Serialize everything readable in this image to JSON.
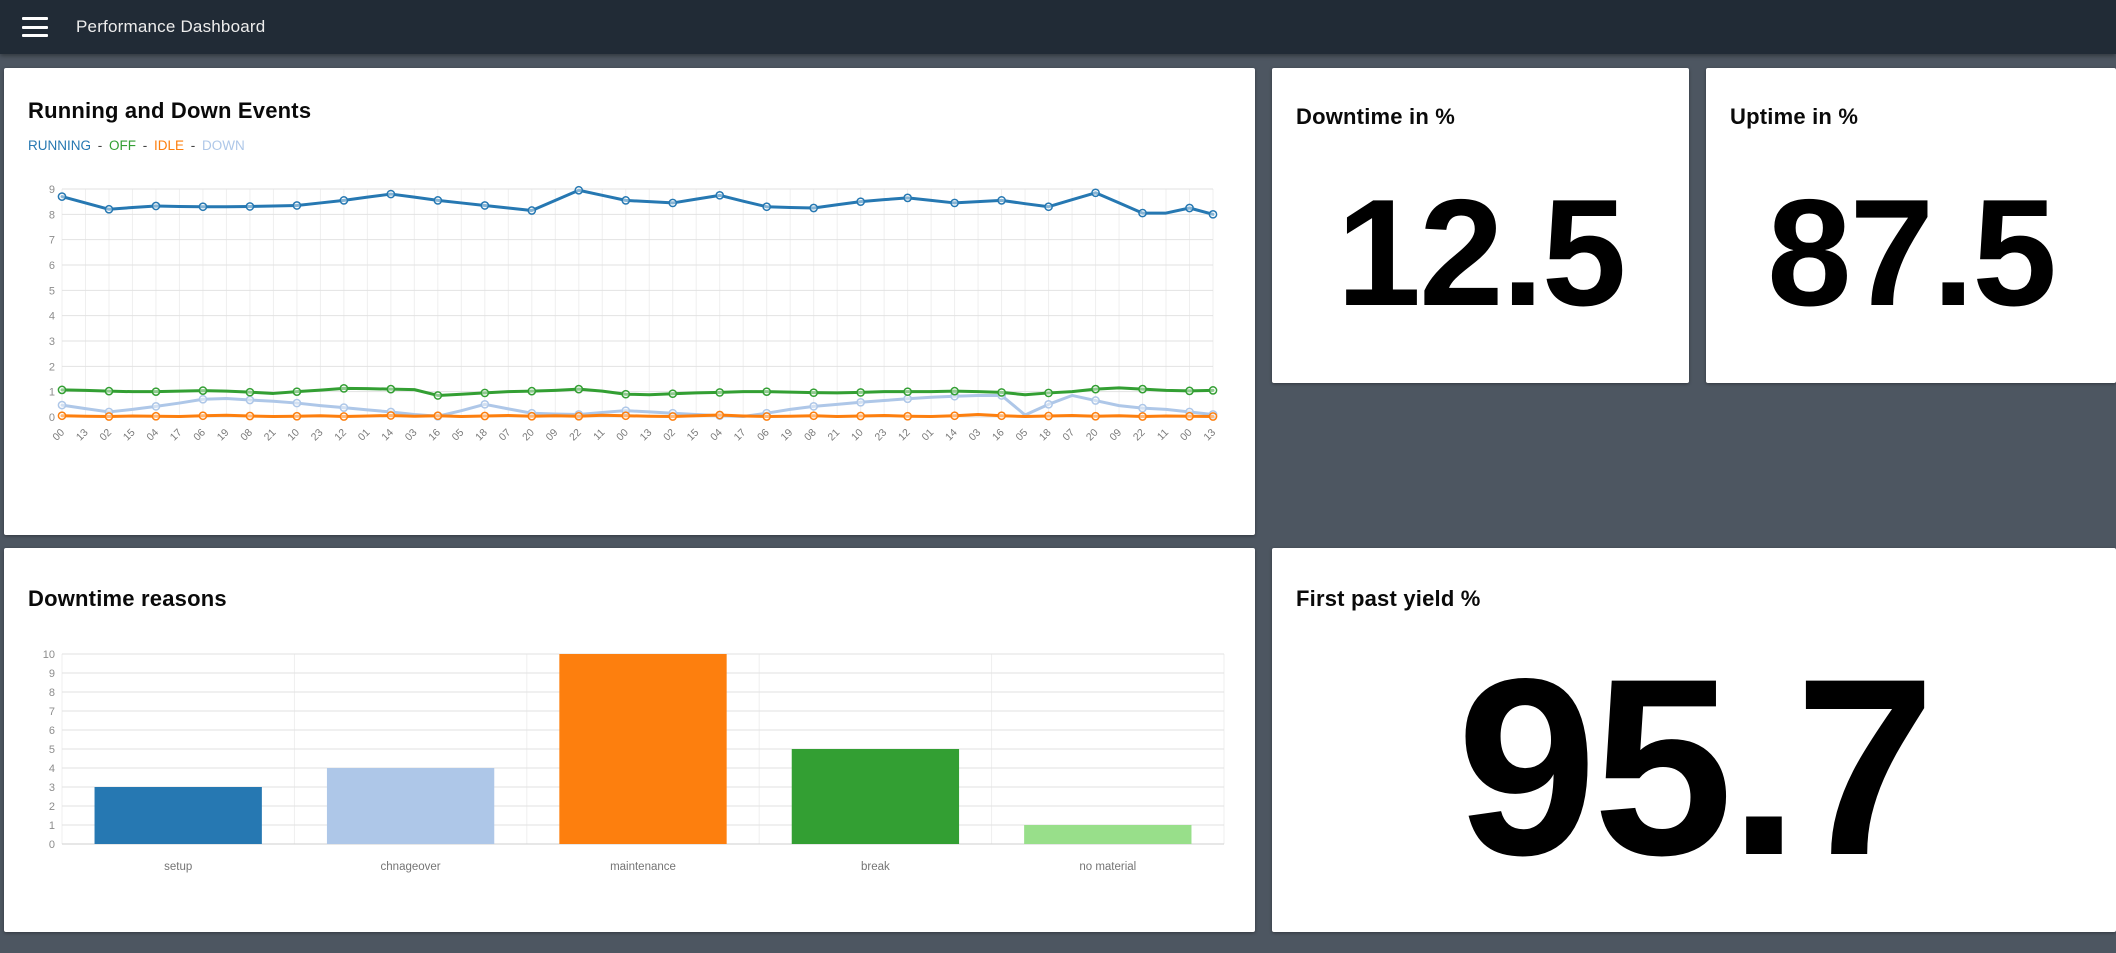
{
  "navbar": {
    "title": "Performance Dashboard"
  },
  "cards": {
    "events": {
      "title": "Running and Down Events"
    },
    "downtime": {
      "title": "Downtime in %",
      "value": "12.5"
    },
    "uptime": {
      "title": "Uptime in %",
      "value": "87.5"
    },
    "reasons": {
      "title": "Downtime reasons"
    },
    "fpy": {
      "title": "First past yield %",
      "value": "95.7"
    }
  },
  "colors": {
    "navbar_bg": "#212b36",
    "page_bg": "#4d5661",
    "card_bg": "#ffffff",
    "grid_line": "#e2e2e2",
    "axis_text": "#8c8c8c",
    "running_blue": "#2678b2",
    "off_green": "#339f33",
    "idle_orange": "#fd7f0e",
    "down_lightblue": "#aec7e8"
  },
  "chart_data": [
    {
      "type": "line",
      "title": "Running and Down Events",
      "categories": [
        "00",
        "13",
        "02",
        "15",
        "04",
        "17",
        "06",
        "19",
        "08",
        "21",
        "10",
        "23",
        "12",
        "01",
        "14",
        "03",
        "16",
        "05",
        "18",
        "07",
        "20",
        "09",
        "22",
        "11",
        "00",
        "13",
        "02",
        "15",
        "04",
        "17",
        "06",
        "19",
        "08",
        "21",
        "10",
        "23",
        "12",
        "01",
        "14",
        "03",
        "16",
        "05",
        "18",
        "07",
        "20",
        "09",
        "22",
        "11",
        "00",
        "13"
      ],
      "series": [
        {
          "name": "RUNNING",
          "color": "#2678b2",
          "values": [
            8.7,
            8.45,
            8.2,
            8.27,
            8.33,
            8.31,
            8.3,
            8.3,
            8.31,
            8.33,
            8.35,
            8.45,
            8.55,
            8.68,
            8.8,
            8.68,
            8.55,
            8.45,
            8.35,
            8.25,
            8.15,
            8.55,
            8.95,
            8.75,
            8.55,
            8.5,
            8.45,
            8.6,
            8.75,
            8.52,
            8.3,
            8.27,
            8.25,
            8.38,
            8.5,
            8.58,
            8.65,
            8.55,
            8.45,
            8.5,
            8.55,
            8.42,
            8.3,
            8.58,
            8.85,
            8.45,
            8.05,
            8.05,
            8.25,
            8.0
          ]
        },
        {
          "name": "OFF",
          "color": "#339f33",
          "values": [
            1.07,
            1.05,
            1.02,
            1.0,
            1.0,
            1.02,
            1.04,
            1.02,
            0.98,
            0.93,
            1.0,
            1.06,
            1.13,
            1.12,
            1.1,
            1.08,
            0.85,
            0.9,
            0.95,
            1.0,
            1.02,
            1.05,
            1.1,
            1.02,
            0.9,
            0.88,
            0.92,
            0.95,
            0.97,
            1.0,
            1.0,
            0.98,
            0.96,
            0.95,
            0.97,
            1.0,
            1.0,
            1.0,
            1.02,
            1.0,
            0.97,
            0.88,
            0.95,
            1.0,
            1.1,
            1.15,
            1.1,
            1.05,
            1.03,
            1.05
          ]
        },
        {
          "name": "IDLE",
          "color": "#fd7f0e",
          "values": [
            0.05,
            0.03,
            0.02,
            0.04,
            0.03,
            0.02,
            0.05,
            0.07,
            0.04,
            0.02,
            0.03,
            0.05,
            0.02,
            0.04,
            0.06,
            0.03,
            0.05,
            0.02,
            0.04,
            0.06,
            0.03,
            0.05,
            0.03,
            0.07,
            0.05,
            0.03,
            0.02,
            0.05,
            0.08,
            0.04,
            0.02,
            0.03,
            0.05,
            0.02,
            0.04,
            0.06,
            0.03,
            0.02,
            0.05,
            0.1,
            0.05,
            0.02,
            0.04,
            0.06,
            0.03,
            0.05,
            0.02,
            0.04,
            0.03,
            0.02
          ]
        },
        {
          "name": "DOWN",
          "color": "#aec7e8",
          "values": [
            0.47,
            0.33,
            0.2,
            0.3,
            0.42,
            0.55,
            0.7,
            0.73,
            0.67,
            0.62,
            0.55,
            0.45,
            0.37,
            0.28,
            0.2,
            0.1,
            0.03,
            0.25,
            0.5,
            0.32,
            0.15,
            0.12,
            0.1,
            0.18,
            0.25,
            0.2,
            0.15,
            0.1,
            0.05,
            0.02,
            0.15,
            0.3,
            0.42,
            0.5,
            0.58,
            0.65,
            0.72,
            0.78,
            0.82,
            0.85,
            0.85,
            0.08,
            0.5,
            0.85,
            0.65,
            0.45,
            0.35,
            0.3,
            0.2,
            0.1
          ]
        }
      ],
      "ylim": [
        0,
        9
      ],
      "yticks": [
        0,
        1,
        2,
        3,
        4,
        5,
        6,
        7,
        8,
        9
      ],
      "grid": true,
      "legend_position": "top"
    },
    {
      "type": "bar",
      "title": "Downtime reasons",
      "categories": [
        "setup",
        "chnageover",
        "maintenance",
        "break",
        "no material"
      ],
      "values": [
        3,
        4,
        10,
        5,
        1
      ],
      "colors": [
        "#2678b2",
        "#aec7e8",
        "#fd7f0e",
        "#339f33",
        "#98df8a"
      ],
      "ylim": [
        0,
        10
      ],
      "yticks": [
        0,
        1,
        2,
        3,
        4,
        5,
        6,
        7,
        8,
        9,
        10
      ],
      "grid": true
    }
  ]
}
